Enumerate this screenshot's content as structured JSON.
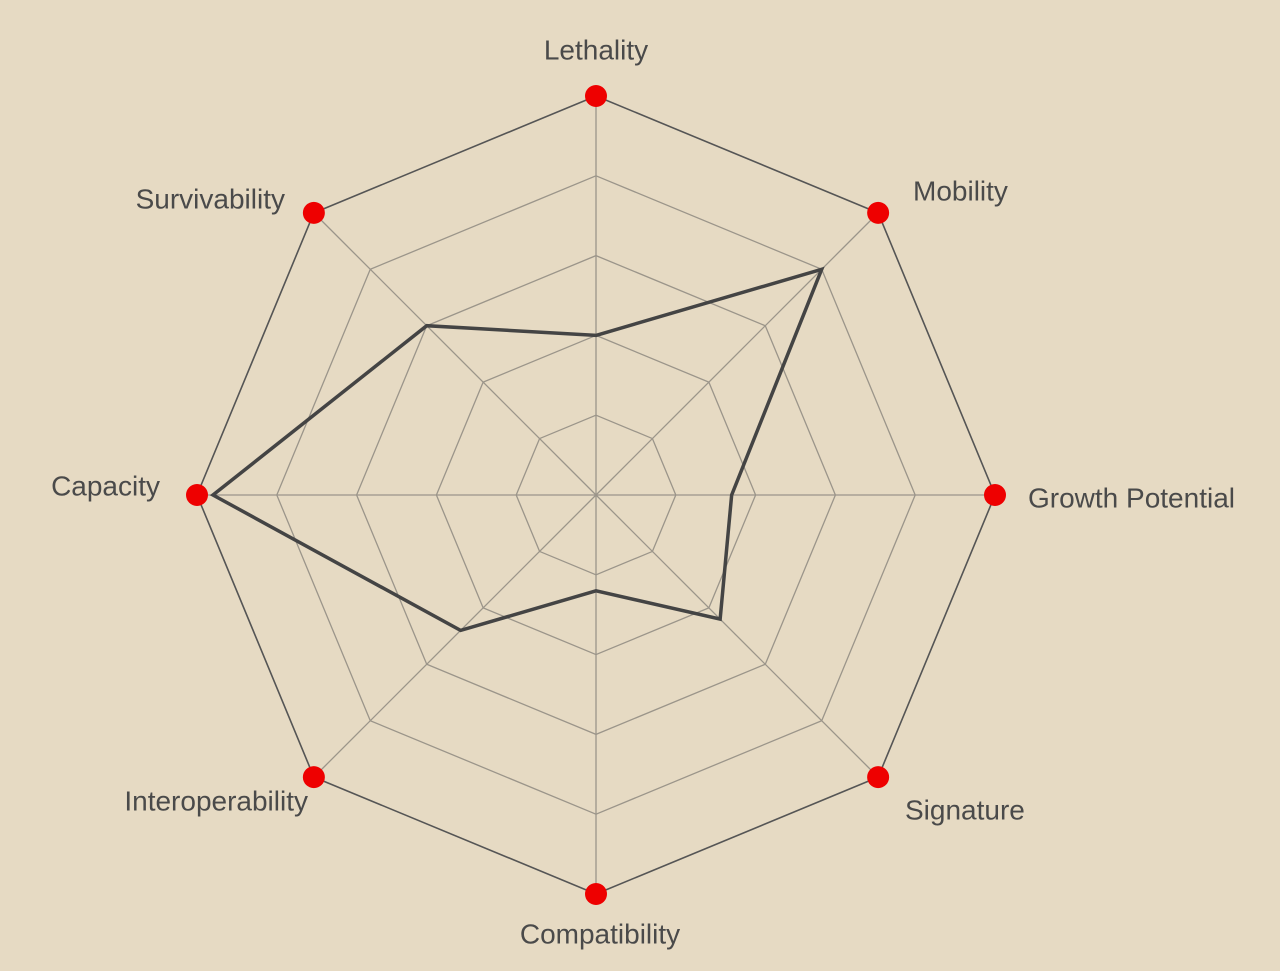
{
  "chart_data": {
    "type": "radar",
    "categories": [
      "Lethality",
      "Mobility",
      "Growth Potential",
      "Signature",
      "Compatibility",
      "Interoperability",
      "Capacity",
      "Survivability"
    ],
    "values": [
      2,
      4,
      1.7,
      2.2,
      1.2,
      2.4,
      4.8,
      3
    ],
    "color": "#444444",
    "marker_color": "#ee0000",
    "ylim": [
      0,
      5
    ],
    "yticks": [
      1,
      2,
      3,
      4,
      5
    ],
    "grid": true
  }
}
